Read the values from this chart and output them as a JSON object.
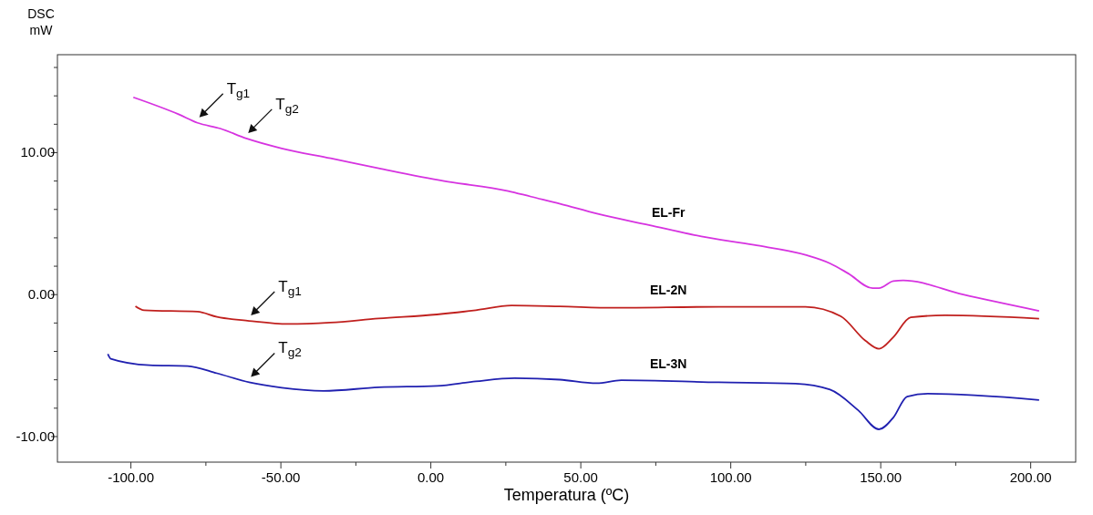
{
  "chart_data": {
    "type": "line",
    "xlabel": "Temperatura (ºC)",
    "ylabel": "DSC mW",
    "xlim": [
      -124.5,
      215
    ],
    "ylim": [
      -11.8,
      16.9
    ],
    "xticks": [
      {
        "value": -100,
        "label": "-100.00"
      },
      {
        "value": -75,
        "label": null
      },
      {
        "value": -50,
        "label": "-50.00"
      },
      {
        "value": -25,
        "label": null
      },
      {
        "value": 0,
        "label": "0.00"
      },
      {
        "value": 25,
        "label": null
      },
      {
        "value": 50,
        "label": "50.00"
      },
      {
        "value": 75,
        "label": null
      },
      {
        "value": 100,
        "label": "100.00"
      },
      {
        "value": 125,
        "label": null
      },
      {
        "value": 150,
        "label": "150.00"
      },
      {
        "value": 175,
        "label": null
      },
      {
        "value": 200,
        "label": "200.00"
      }
    ],
    "yticks": [
      {
        "value": -10,
        "label": "-10.00"
      },
      {
        "value": -8,
        "label": null
      },
      {
        "value": -6,
        "label": null
      },
      {
        "value": -4,
        "label": null
      },
      {
        "value": -2,
        "label": null
      },
      {
        "value": 0,
        "label": "0.00"
      },
      {
        "value": 2,
        "label": null
      },
      {
        "value": 4,
        "label": null
      },
      {
        "value": 6,
        "label": null
      },
      {
        "value": 8,
        "label": null
      },
      {
        "value": 10,
        "label": "10.00"
      },
      {
        "value": 12,
        "label": null
      },
      {
        "value": 14,
        "label": null
      },
      {
        "value": 16,
        "label": null
      }
    ],
    "grid": false,
    "marker": "none",
    "line_style": "solid",
    "series": [
      {
        "name": "EL-Fr",
        "color": "#d633e0",
        "x": [
          -99.2,
          -84.1,
          -77.8,
          -70.2,
          -61.5,
          -49.7,
          -33.4,
          -17.4,
          4.4,
          25.8,
          33.4,
          43.1,
          55.4,
          72.7,
          90.2,
          107.7,
          124.9,
          133.1,
          139.1,
          147.3,
          149.4,
          154.2,
          157.5,
          177.5,
          202.8
        ],
        "values": [
          13.9,
          12.7,
          12.1,
          11.7,
          11.0,
          10.3,
          9.6,
          8.9,
          8.0,
          7.3,
          6.9,
          6.4,
          5.7,
          4.9,
          4.1,
          3.5,
          2.8,
          2.2,
          1.5,
          0.45,
          0.45,
          0.95,
          1.0,
          0.0,
          -1.15
        ]
      },
      {
        "name": "EL-2N",
        "color": "#c0201e",
        "x": [
          -98.5,
          -95.6,
          -77.8,
          -71.3,
          -60.6,
          -47.6,
          -33.5,
          -17.4,
          2,
          15,
          26.9,
          43,
          61.2,
          96,
          124.9,
          136.7,
          144.9,
          149.4,
          154.2,
          160,
          171.5,
          202.8
        ],
        "values": [
          -0.82,
          -1.1,
          -1.2,
          -1.57,
          -1.85,
          -2.07,
          -1.97,
          -1.68,
          -1.4,
          -1.1,
          -0.77,
          -0.83,
          -0.93,
          -0.86,
          -0.86,
          -1.53,
          -3.25,
          -3.82,
          -3.0,
          -1.6,
          -1.46,
          -1.69
        ]
      },
      {
        "name": "EL-3N",
        "color": "#2020b0",
        "x": [
          -107.7,
          -106.7,
          -93.9,
          -81.1,
          -71.3,
          -60.6,
          -49.7,
          -35.8,
          -17.4,
          2,
          15,
          27.9,
          43,
          55.3,
          63.5,
          96,
          121.6,
          133.1,
          142.5,
          149.4,
          154.2,
          158.8,
          165.7,
          202.8
        ],
        "values": [
          -4.18,
          -4.52,
          -4.97,
          -5.03,
          -5.54,
          -6.18,
          -6.56,
          -6.78,
          -6.53,
          -6.43,
          -6.11,
          -5.89,
          -5.99,
          -6.24,
          -6.03,
          -6.18,
          -6.27,
          -6.69,
          -8.15,
          -9.49,
          -8.66,
          -7.18,
          -6.98,
          -7.42
        ]
      }
    ],
    "annotations": [
      {
        "text": "T$_{g1}$",
        "x": -77.8,
        "y": 12.1
      },
      {
        "text": "T$_{g2}$",
        "x": -61.5,
        "y": 11.0
      },
      {
        "text": "T$_{g1}$",
        "x": -60.6,
        "y": -1.85
      },
      {
        "text": "T$_{g2}$",
        "x": -60.6,
        "y": -6.18
      }
    ]
  }
}
